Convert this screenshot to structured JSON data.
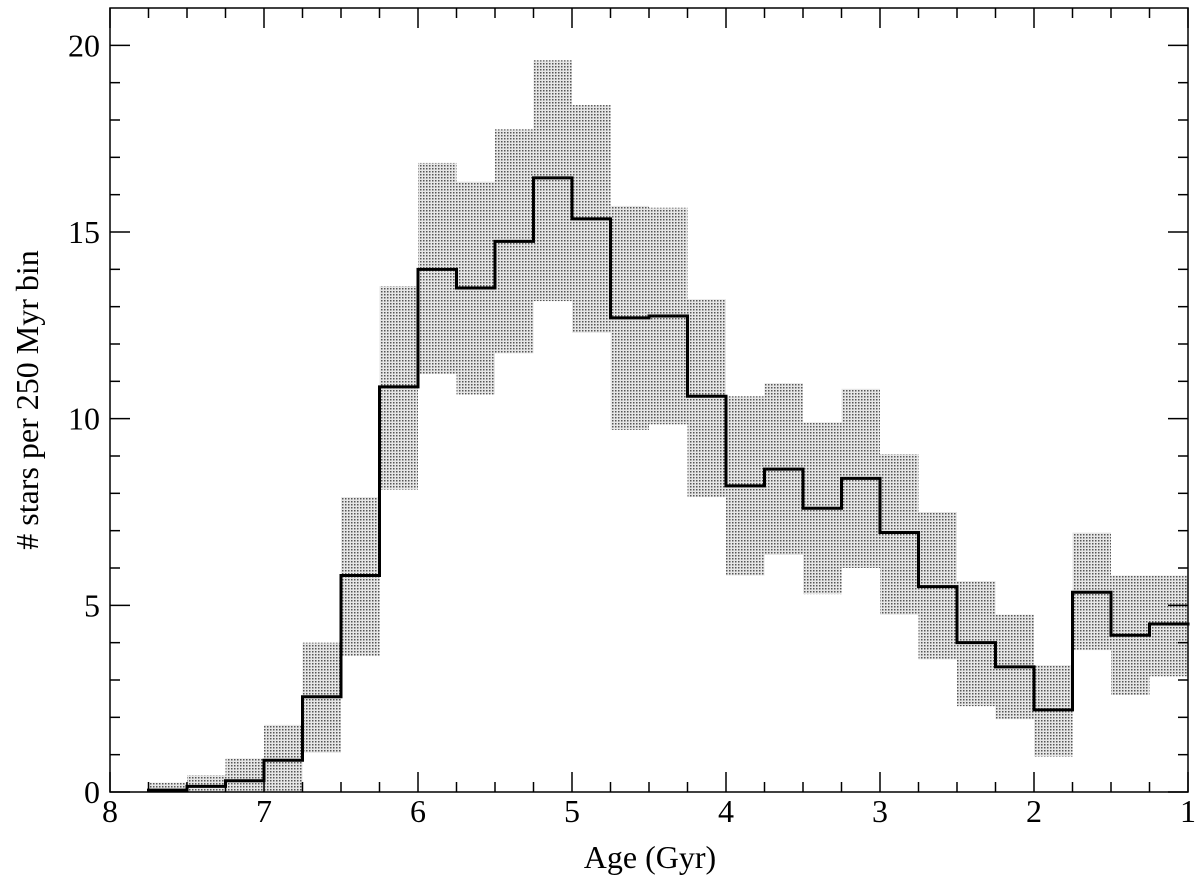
{
  "chart_data": {
    "type": "histogram",
    "xlabel": "Age (Gyr)",
    "ylabel": "# stars per 250 Myr bin",
    "bins": [
      7.75,
      7.5,
      7.25,
      7.0,
      6.75,
      6.5,
      6.25,
      6.0,
      5.75,
      5.5,
      5.25,
      5.0,
      4.75,
      4.5,
      4.25,
      4.0,
      3.75,
      3.5,
      3.25,
      3.0,
      2.75,
      2.5,
      2.25,
      2.0,
      1.75,
      1.5,
      1.25,
      1.0
    ],
    "values": [
      0.05,
      0.15,
      0.3,
      0.85,
      2.55,
      5.8,
      10.85,
      14.0,
      13.5,
      14.75,
      16.45,
      15.35,
      12.7,
      12.75,
      10.6,
      8.2,
      8.65,
      7.6,
      8.4,
      6.95,
      5.5,
      4.0,
      3.35,
      2.2,
      5.35,
      4.2,
      4.5
    ],
    "band_low": [
      0,
      0,
      0,
      0,
      1.05,
      3.65,
      8.1,
      11.2,
      10.65,
      11.75,
      13.15,
      12.3,
      9.7,
      9.85,
      7.9,
      5.8,
      6.35,
      5.3,
      6.0,
      4.75,
      3.55,
      2.3,
      1.95,
      0.95,
      3.8,
      2.6,
      3.1
    ],
    "band_high": [
      0.25,
      0.45,
      0.9,
      1.8,
      4.0,
      7.9,
      13.55,
      16.85,
      16.35,
      17.75,
      19.6,
      18.4,
      15.7,
      15.65,
      13.2,
      10.6,
      10.95,
      9.9,
      10.8,
      9.05,
      7.5,
      5.65,
      4.75,
      3.4,
      6.95,
      5.8,
      5.8
    ],
    "color": "#000000",
    "band_color": "#555555",
    "xlim": [
      8,
      1
    ],
    "ylim": [
      0,
      21
    ],
    "xticks": [
      8,
      7,
      6,
      5,
      4,
      3,
      2,
      1
    ],
    "yticks": [
      0,
      5,
      10,
      15,
      20
    ],
    "xticks_minor": [
      7.75,
      7.5,
      7.25,
      6.75,
      6.5,
      6.25,
      5.75,
      5.5,
      5.25,
      4.75,
      4.5,
      4.25,
      3.75,
      3.5,
      3.25,
      2.75,
      2.5,
      2.25,
      1.75,
      1.5,
      1.25
    ],
    "yticks_minor": [
      1,
      2,
      3,
      4,
      6,
      7,
      8,
      9,
      11,
      12,
      13,
      14,
      16,
      17,
      18,
      19
    ]
  }
}
